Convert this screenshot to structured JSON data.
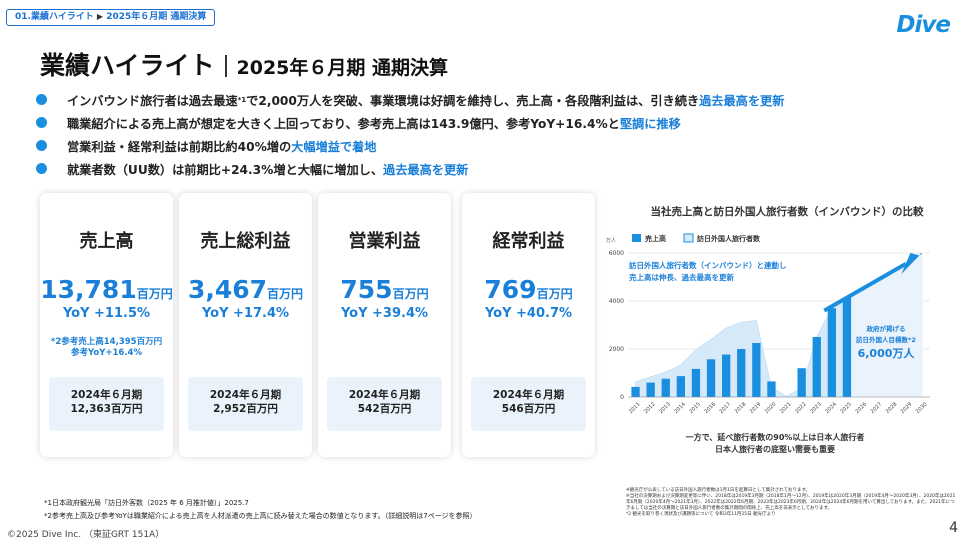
{
  "breadcrumb": {
    "section": "01.業績ハイライト",
    "arrow": "▶",
    "page": "2025年６月期 通期決算"
  },
  "logo": "Dive",
  "title": {
    "main": "業績ハイライト",
    "sub": "2025年６月期 通期決算"
  },
  "bullets": [
    {
      "pre": "インバウンド旅行者は過去最速",
      "sup": "*1",
      "mid": "で2,000万人を突破、事業環境は好調を維持し、売上高・各段階利益は、引き続き",
      "hl": "過去最高を更新",
      "post": ""
    },
    {
      "pre": "職業紹介による売上高が想定を大きく上回っており、参考売上高は143.9億円、参考YoY+16.4%と",
      "sup": "",
      "mid": "",
      "hl": "堅調に推移",
      "post": ""
    },
    {
      "pre": "営業利益・経常利益は前期比約40%増の",
      "sup": "",
      "mid": "",
      "hl": "大幅増益で着地",
      "post": ""
    },
    {
      "pre": "就業者数（UU数）は前期比+24.3%増と大幅に増加し、",
      "sup": "",
      "mid": "",
      "hl": "過去最高を更新",
      "post": ""
    }
  ],
  "cards": [
    {
      "name": "売上高",
      "value": "13,781",
      "unit": "百万円",
      "yoy": "YoY +11.5%",
      "note1": "*2参考売上高14,395百万円",
      "note2": "参考YoY+16.4%",
      "prev_period": "2024年６月期",
      "prev_value": "12,363百万円"
    },
    {
      "name": "売上総利益",
      "value": "3,467",
      "unit": "百万円",
      "yoy": "YoY +17.4%",
      "note1": "",
      "note2": "",
      "prev_period": "2024年６月期",
      "prev_value": "2,952百万円"
    },
    {
      "name": "営業利益",
      "value": "755",
      "unit": "百万円",
      "yoy": "YoY +39.4%",
      "note1": "",
      "note2": "",
      "prev_period": "2024年６月期",
      "prev_value": "542百万円"
    },
    {
      "name": "経常利益",
      "value": "769",
      "unit": "百万円",
      "yoy": "YoY +40.7%",
      "note1": "",
      "note2": "",
      "prev_period": "2024年６月期",
      "prev_value": "546百万円"
    }
  ],
  "chart_data": {
    "type": "bar",
    "title": "当社売上高と訪日外国人旅行者数（インバウンド）の比較",
    "y_unit": "万人",
    "ylim": [
      0,
      6000
    ],
    "yticks": [
      "0",
      "2000",
      "4000",
      "6000"
    ],
    "categories": [
      "2011",
      "2012",
      "2013",
      "2014",
      "2015",
      "2016",
      "2017",
      "2018",
      "2019",
      "2020",
      "2021",
      "2022",
      "2023",
      "2024",
      "2025",
      "2026",
      "2027",
      "2028",
      "2029",
      "2030"
    ],
    "series": [
      {
        "name": "売上高",
        "color": "#1a8fe0",
        "values": [
          420,
          600,
          760,
          870,
          1170,
          1570,
          1770,
          2000,
          2250,
          650,
          0,
          1200,
          2500,
          3700,
          4150,
          null,
          null,
          null,
          null,
          null
        ]
      },
      {
        "name": "訪日外国人旅行者数",
        "color": "#d6e9f8",
        "values": [
          620,
          840,
          1040,
          1340,
          1970,
          2400,
          2870,
          3120,
          3190,
          410,
          25,
          380,
          2510,
          3690,
          4200,
          null,
          null,
          null,
          null,
          6000
        ]
      }
    ],
    "callout": {
      "line1": "訪日外国人旅行者数（インバウンド）と連動し",
      "line2": "売上高は伸長、過去最高を更新"
    },
    "target": {
      "label1": "政府が掲げる",
      "label2": "訪日外国人目標数*2",
      "value": "6,000万人"
    },
    "bottom_note": {
      "line1": "一方で、延べ旅行者数の90%以上は日本人旅行者",
      "line2": "日本人旅行者の底堅い需要も重要"
    },
    "small_notes": {
      "n1": "※観光庁が公表している訪日外国人旅行者数は1月1日を起算日として集計されております。",
      "n2": "※当社の決算期および決算期変更等に伴い、2018年は2019年3月期（2018年1月～12月）、2019年は2020年3月期（2019年4月～2020年3月）、2020年は2021年6月期（2020年4月～2021年3月）、2022年は2022年6月期、2023年は2023年6月期、2024年は2024年6月期を用いて算出しております。また、2021年につきましては当社の決算期と訪日外国人旅行者数の集計期間の関係上、売上高を非表示としております。",
      "n3": "*2 観光を取り巻く現状及び課題等について 令和3年11月25日 観光庁より"
    }
  },
  "footnotes": {
    "f1": "*1日本政府観光局「訪日外客数（2025 年 6 月推計値）」2025.7",
    "f2": "*2参考売上高及び参考YoYは職業紹介による売上高を人材派遣の売上高に読み替えた場合の数値となります。（詳細説明は7ページを参照）"
  },
  "copyright": "©2025 Dive Inc. （東証GRT 151A）",
  "page_number": "4"
}
